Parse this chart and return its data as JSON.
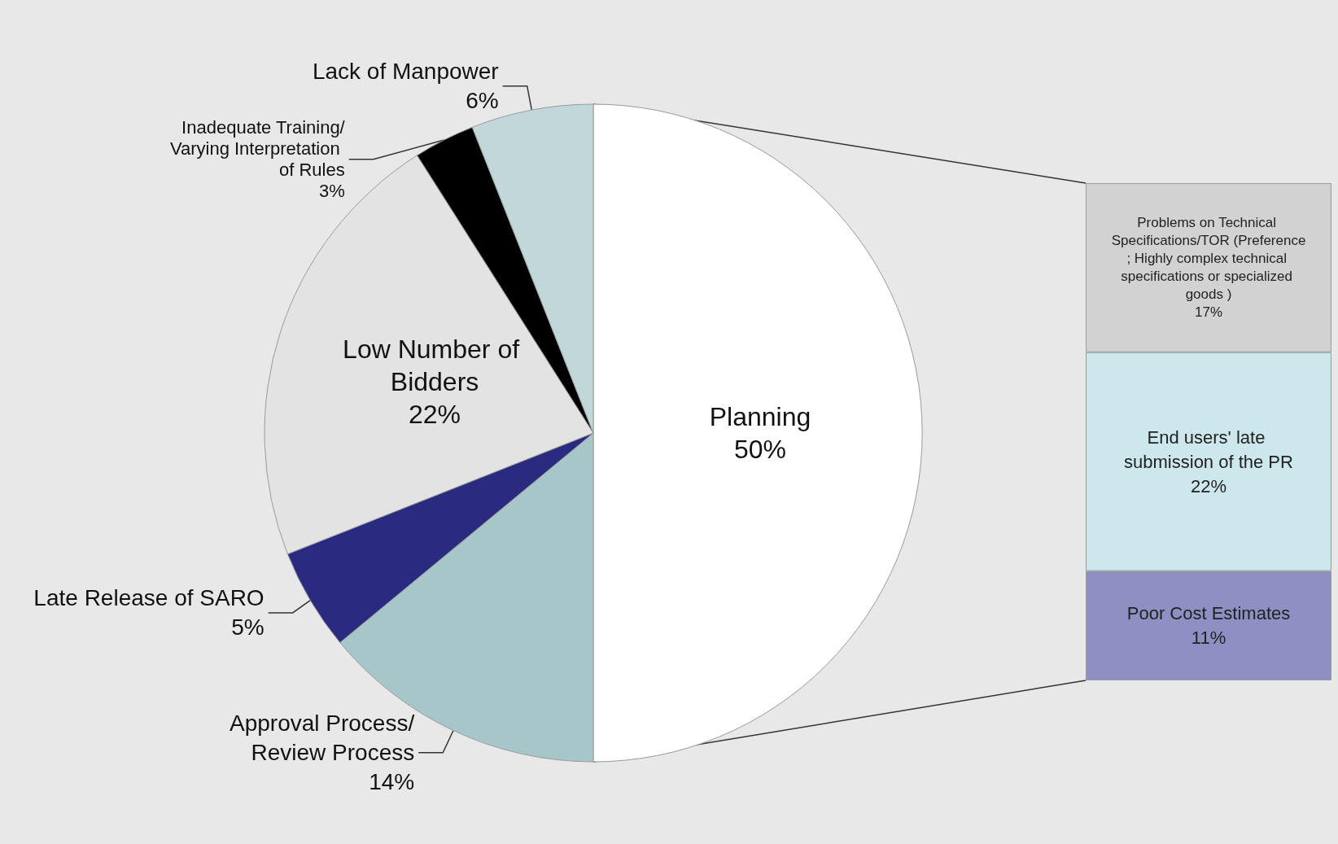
{
  "chart_data": [
    {
      "type": "pie",
      "categories": [
        "Planning",
        "Approval Process/Review Process",
        "Late Release of SARO",
        "Low Number of Bidders",
        "Inadequate Training/Varying Interpretation  of Rules",
        "Lack of Manpower"
      ],
      "values": [
        50,
        14,
        5,
        22,
        3,
        6
      ],
      "value_labels": [
        "50%",
        "14%",
        "5%",
        "22%",
        "3%",
        "6%"
      ],
      "colors": [
        "#ffffff",
        "#a7c6c9",
        "#2a2a80",
        "#e3e3e3",
        "#000000",
        "#c2d7da"
      ],
      "legend": false
    },
    {
      "type": "bar",
      "stacked": true,
      "categories": [
        null
      ],
      "ylim": [
        0,
        50
      ],
      "tick_labels": false,
      "legend": false,
      "series": [
        {
          "name": "Poor Cost Estimates",
          "color": "#8e8fc2",
          "values": [
            11
          ],
          "value_labels": [
            "11%"
          ]
        },
        {
          "name": "End users' late submission of the PR",
          "color": "#cde8ec",
          "values": [
            22
          ],
          "value_labels": [
            "22%"
          ]
        },
        {
          "name": "Problems on Technical Specifications/TOR (Preference; Highly complex technical specifications or specialized goods )",
          "color": "#d2d2d2",
          "values": [
            17
          ],
          "value_labels": [
            "17%"
          ]
        }
      ]
    }
  ]
}
